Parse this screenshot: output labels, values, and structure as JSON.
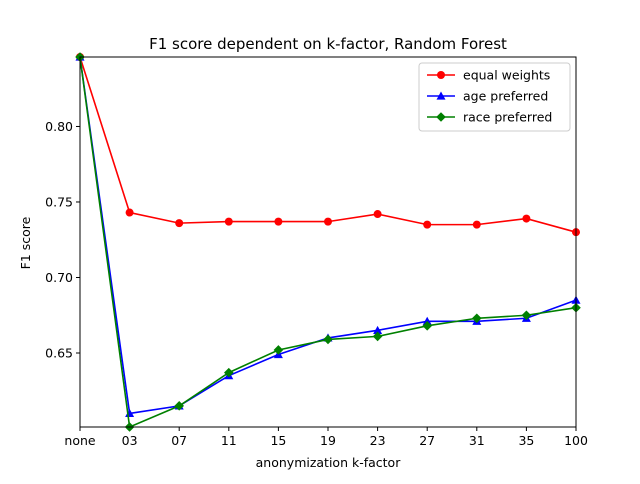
{
  "chart_data": {
    "type": "line",
    "title": "F1 score dependent on k-factor, Random Forest",
    "xlabel": "anonymization k-factor",
    "ylabel": "F1 score",
    "categories": [
      "none",
      "03",
      "07",
      "11",
      "15",
      "19",
      "23",
      "27",
      "31",
      "35",
      "100"
    ],
    "ylim": [
      0.601,
      0.846
    ],
    "yticks": [
      0.65,
      0.7,
      0.75,
      0.8
    ],
    "ytick_labels": [
      "0.65",
      "0.70",
      "0.75",
      "0.80"
    ],
    "grid": false,
    "legend_position": "top-right",
    "series": [
      {
        "name": "equal weights",
        "color": "#ff0000",
        "marker": "circle",
        "values": [
          0.846,
          0.743,
          0.736,
          0.737,
          0.737,
          0.737,
          0.742,
          0.735,
          0.735,
          0.739,
          0.73
        ]
      },
      {
        "name": "age preferred",
        "color": "#0000ff",
        "marker": "triangle",
        "values": [
          0.846,
          0.61,
          0.615,
          0.635,
          0.649,
          0.66,
          0.665,
          0.671,
          0.671,
          0.673,
          0.685
        ]
      },
      {
        "name": "race preferred",
        "color": "#008000",
        "marker": "diamond",
        "values": [
          0.846,
          0.601,
          0.615,
          0.637,
          0.652,
          0.659,
          0.661,
          0.668,
          0.673,
          0.675,
          0.68
        ]
      }
    ]
  }
}
